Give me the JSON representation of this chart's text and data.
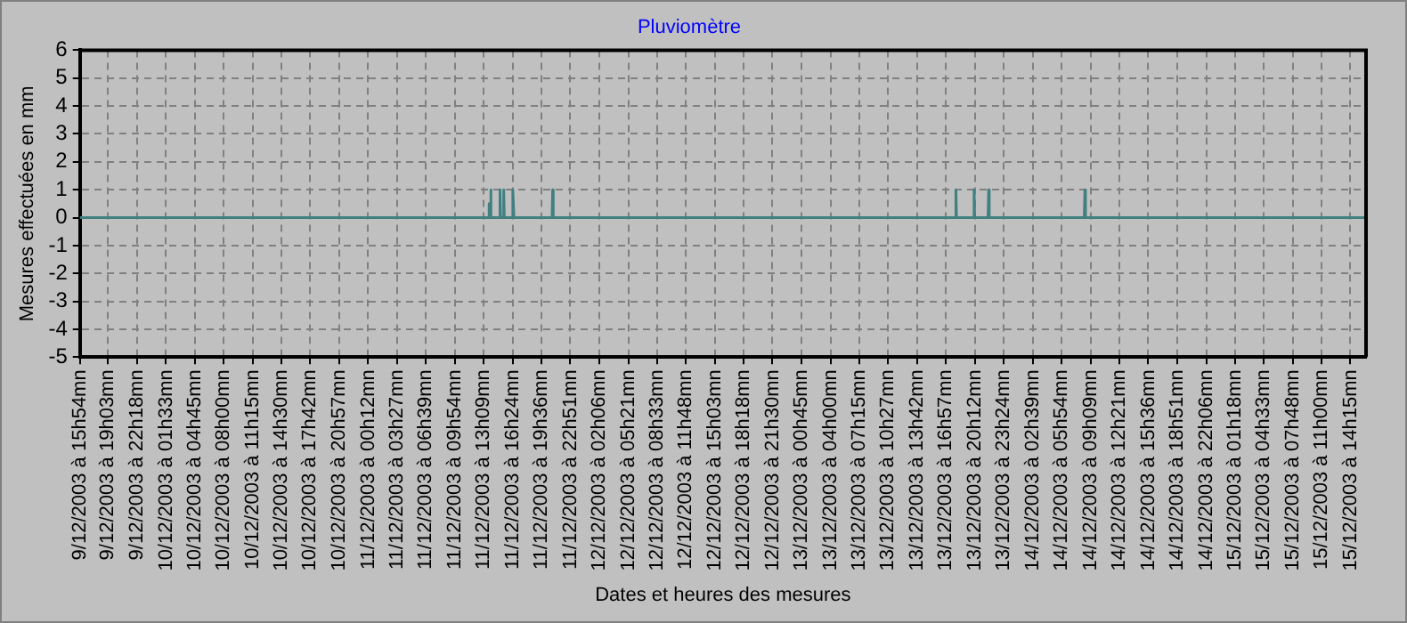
{
  "chart_data": {
    "type": "line",
    "title": "Pluviomètre",
    "xlabel": "Dates et heures des mesures",
    "ylabel": "Mesures effectuées en mm",
    "series": [
      {
        "color": "#408080",
        "x": [
          "2003-12-09T15:54",
          "2003-12-11T13:40",
          "2003-12-11T13:45",
          "2003-12-11T13:50",
          "2003-12-11T13:53",
          "2003-12-11T13:57",
          "2003-12-11T14:01",
          "2003-12-11T14:54",
          "2003-12-11T14:58",
          "2003-12-11T15:02",
          "2003-12-11T15:19",
          "2003-12-11T15:23",
          "2003-12-11T15:27",
          "2003-12-11T16:16",
          "2003-12-11T16:24",
          "2003-12-11T16:32",
          "2003-12-11T20:48",
          "2003-12-11T20:52",
          "2003-12-11T20:56",
          "2003-12-13T17:59",
          "2003-12-13T18:03",
          "2003-12-13T18:07",
          "2003-12-13T20:01",
          "2003-12-13T20:05",
          "2003-12-13T20:09",
          "2003-12-13T21:39",
          "2003-12-13T21:43",
          "2003-12-13T21:47",
          "2003-12-14T08:26",
          "2003-12-14T08:30",
          "2003-12-14T08:34",
          "2003-12-15T16:00"
        ],
        "values": [
          0,
          0,
          0.5,
          0,
          0,
          1,
          0,
          0,
          1,
          0,
          0,
          1,
          0,
          0,
          1,
          0,
          0,
          1,
          0,
          0,
          1,
          0,
          0,
          1,
          0,
          0,
          1,
          0,
          0,
          1,
          0,
          0
        ]
      }
    ],
    "xlim": [
      "2003-12-09T15:54",
      "2003-12-15T16:00"
    ],
    "xticks": [
      {
        "value": "2003-12-09T15:54",
        "label": "9/12/2003 à 15h54mn"
      },
      {
        "value": "2003-12-09T19:03",
        "label": "9/12/2003 à 19h03mn"
      },
      {
        "value": "2003-12-09T22:18",
        "label": "9/12/2003 à 22h18mn"
      },
      {
        "value": "2003-12-10T01:33",
        "label": "10/12/2003 à 01h33mn"
      },
      {
        "value": "2003-12-10T04:45",
        "label": "10/12/2003 à 04h45mn"
      },
      {
        "value": "2003-12-10T08:00",
        "label": "10/12/2003 à 08h00mn"
      },
      {
        "value": "2003-12-10T11:15",
        "label": "10/12/2003 à 11h15mn"
      },
      {
        "value": "2003-12-10T14:30",
        "label": "10/12/2003 à 14h30mn"
      },
      {
        "value": "2003-12-10T17:42",
        "label": "10/12/2003 à 17h42mn"
      },
      {
        "value": "2003-12-10T20:57",
        "label": "10/12/2003 à 20h57mn"
      },
      {
        "value": "2003-12-11T00:12",
        "label": "11/12/2003 à 00h12mn"
      },
      {
        "value": "2003-12-11T03:27",
        "label": "11/12/2003 à 03h27mn"
      },
      {
        "value": "2003-12-11T06:39",
        "label": "11/12/2003 à 06h39mn"
      },
      {
        "value": "2003-12-11T09:54",
        "label": "11/12/2003 à 09h54mn"
      },
      {
        "value": "2003-12-11T13:09",
        "label": "11/12/2003 à 13h09mn"
      },
      {
        "value": "2003-12-11T16:24",
        "label": "11/12/2003 à 16h24mn"
      },
      {
        "value": "2003-12-11T19:36",
        "label": "11/12/2003 à 19h36mn"
      },
      {
        "value": "2003-12-11T22:51",
        "label": "11/12/2003 à 22h51mn"
      },
      {
        "value": "2003-12-12T02:06",
        "label": "12/12/2003 à 02h06mn"
      },
      {
        "value": "2003-12-12T05:21",
        "label": "12/12/2003 à 05h21mn"
      },
      {
        "value": "2003-12-12T08:33",
        "label": "12/12/2003 à 08h33mn"
      },
      {
        "value": "2003-12-12T11:48",
        "label": "12/12/2003 à 11h48mn"
      },
      {
        "value": "2003-12-12T15:03",
        "label": "12/12/2003 à 15h03mn"
      },
      {
        "value": "2003-12-12T18:18",
        "label": "12/12/2003 à 18h18mn"
      },
      {
        "value": "2003-12-12T21:30",
        "label": "12/12/2003 à 21h30mn"
      },
      {
        "value": "2003-12-13T00:45",
        "label": "13/12/2003 à 00h45mn"
      },
      {
        "value": "2003-12-13T04:00",
        "label": "13/12/2003 à 04h00mn"
      },
      {
        "value": "2003-12-13T07:15",
        "label": "13/12/2003 à 07h15mn"
      },
      {
        "value": "2003-12-13T10:27",
        "label": "13/12/2003 à 10h27mn"
      },
      {
        "value": "2003-12-13T13:42",
        "label": "13/12/2003 à 13h42mn"
      },
      {
        "value": "2003-12-13T16:57",
        "label": "13/12/2003 à 16h57mn"
      },
      {
        "value": "2003-12-13T20:12",
        "label": "13/12/2003 à 20h12mn"
      },
      {
        "value": "2003-12-13T23:24",
        "label": "13/12/2003 à 23h24mn"
      },
      {
        "value": "2003-12-14T02:39",
        "label": "14/12/2003 à 02h39mn"
      },
      {
        "value": "2003-12-14T05:54",
        "label": "14/12/2003 à 05h54mn"
      },
      {
        "value": "2003-12-14T09:09",
        "label": "14/12/2003 à 09h09mn"
      },
      {
        "value": "2003-12-14T12:21",
        "label": "14/12/2003 à 12h21mn"
      },
      {
        "value": "2003-12-14T15:36",
        "label": "14/12/2003 à 15h36mn"
      },
      {
        "value": "2003-12-14T18:51",
        "label": "14/12/2003 à 18h51mn"
      },
      {
        "value": "2003-12-14T22:06",
        "label": "14/12/2003 à 22h06mn"
      },
      {
        "value": "2003-12-15T01:18",
        "label": "15/12/2003 à 01h18mn"
      },
      {
        "value": "2003-12-15T04:33",
        "label": "15/12/2003 à 04h33mn"
      },
      {
        "value": "2003-12-15T07:48",
        "label": "15/12/2003 à 07h48mn"
      },
      {
        "value": "2003-12-15T11:00",
        "label": "15/12/2003 à 11h00mn"
      },
      {
        "value": "2003-12-15T14:15",
        "label": "15/12/2003 à 14h15mn"
      }
    ],
    "ylim": [
      -5,
      6
    ],
    "yticks": [
      -5,
      -4,
      -3,
      -2,
      -1,
      0,
      1,
      2,
      3,
      4,
      5,
      6
    ],
    "grid": true,
    "legend": false,
    "marker": "none",
    "line_style": "solid"
  }
}
